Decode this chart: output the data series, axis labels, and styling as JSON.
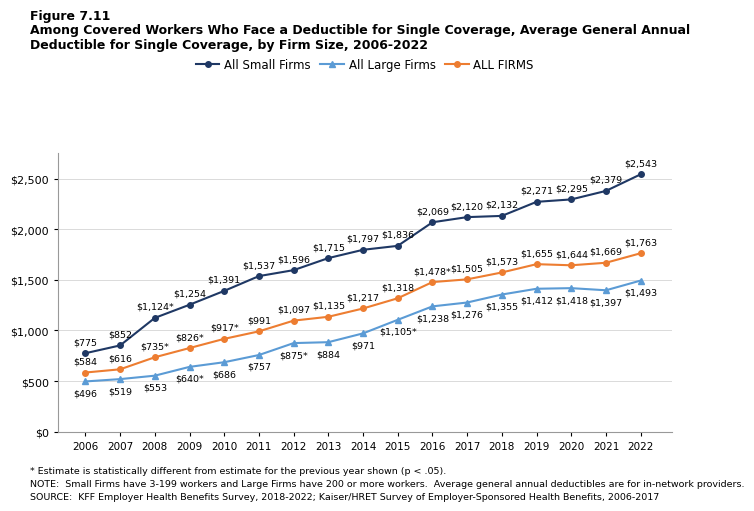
{
  "years": [
    2006,
    2007,
    2008,
    2009,
    2010,
    2011,
    2012,
    2013,
    2014,
    2015,
    2016,
    2017,
    2018,
    2019,
    2020,
    2021,
    2022
  ],
  "small_firms": [
    775,
    852,
    1124,
    1254,
    1391,
    1537,
    1596,
    1715,
    1797,
    1836,
    2069,
    2120,
    2132,
    2271,
    2295,
    2379,
    2543
  ],
  "large_firms": [
    496,
    519,
    553,
    640,
    686,
    757,
    875,
    884,
    971,
    1105,
    1238,
    1276,
    1355,
    1412,
    1418,
    1397,
    1493
  ],
  "all_firms": [
    584,
    616,
    735,
    826,
    917,
    991,
    1097,
    1135,
    1217,
    1318,
    1478,
    1505,
    1573,
    1655,
    1644,
    1669,
    1763
  ],
  "small_firms_asterisk": [
    false,
    false,
    true,
    false,
    false,
    false,
    false,
    false,
    false,
    false,
    false,
    false,
    false,
    false,
    false,
    false,
    false
  ],
  "large_firms_asterisk": [
    false,
    false,
    false,
    true,
    false,
    false,
    true,
    false,
    false,
    true,
    false,
    false,
    false,
    false,
    false,
    false,
    false
  ],
  "all_firms_asterisk": [
    false,
    false,
    true,
    true,
    true,
    false,
    false,
    false,
    false,
    false,
    true,
    false,
    false,
    false,
    false,
    false,
    false
  ],
  "small_firms_color": "#1f3864",
  "large_firms_color": "#5b9bd5",
  "all_firms_color": "#ed7d31",
  "small_firms_label": "All Small Firms",
  "large_firms_label": "All Large Firms",
  "all_firms_label": "ALL FIRMS",
  "figure_label": "Figure 7.11",
  "title_line1": "Among Covered Workers Who Face a Deductible for Single Coverage, Average General Annual",
  "title_line2": "Deductible for Single Coverage, by Firm Size, 2006-2022",
  "footnote1": "* Estimate is statistically different from estimate for the previous year shown (p < .05).",
  "footnote2": "NOTE:  Small Firms have 3-199 workers and Large Firms have 200 or more workers.  Average general annual deductibles are for in-network providers.",
  "footnote3": "SOURCE:  KFF Employer Health Benefits Survey, 2018-2022; Kaiser/HRET Survey of Employer-Sponsored Health Benefits, 2006-2017",
  "ylim": [
    0,
    2750
  ],
  "yticks": [
    0,
    500,
    1000,
    1500,
    2000,
    2500
  ],
  "background_color": "#ffffff"
}
